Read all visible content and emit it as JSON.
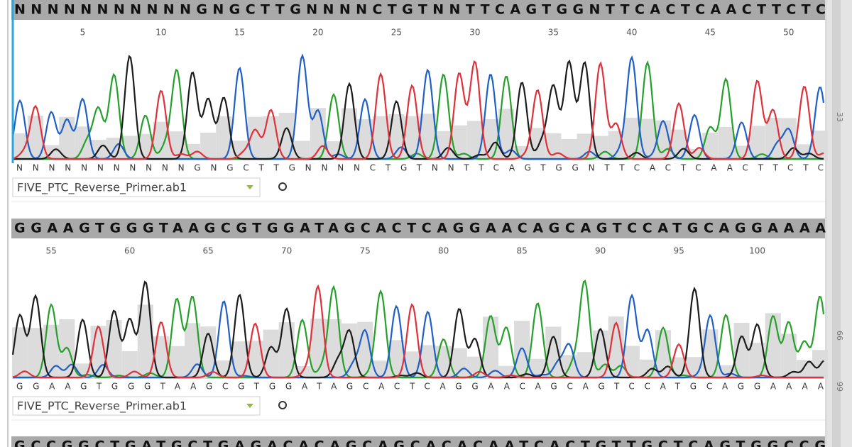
{
  "panels": [
    {
      "sequence": "NNNNNNNNNNNGNGCTTGNNNNCTGTNNTTCAGTGGNTTCACTCAACTTCTC",
      "positions": [
        5,
        10,
        15,
        20,
        25,
        30,
        35,
        40,
        45,
        50
      ],
      "file": "FIVE_PTC_Reverse_Primer.ab1",
      "side_label": 33
    },
    {
      "sequence": "GGAAGTGGGTAAGCGTGGATAGCACTCAGGAACAGCAGTCCATGCAGGAAAA",
      "positions": [
        55,
        60,
        65,
        70,
        75,
        80,
        85,
        90,
        95,
        100
      ],
      "file": "FIVE_PTC_Reverse_Primer.ab1",
      "side_label": 66
    },
    {
      "sequence": "GCCGGCTGATGCTGAGACACAGCAGCACACAATCACTGTTGCTCAGTGGCCG"
    }
  ],
  "gutter_label": 99
}
